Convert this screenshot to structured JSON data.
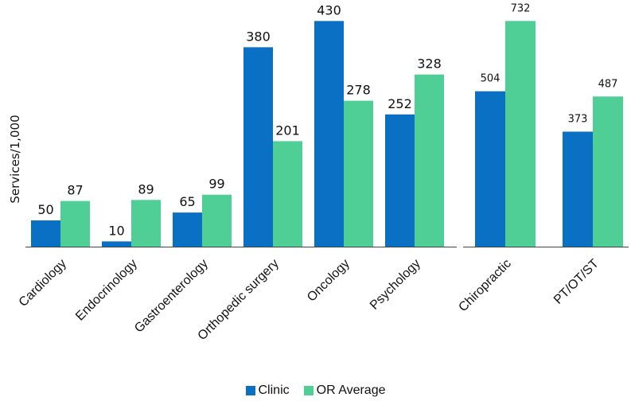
{
  "colors": {
    "clinic": "#0a70c4",
    "or_average": "#4fcf96",
    "axis": "#444444"
  },
  "chart_data": [
    {
      "type": "bar",
      "ylabel": "Services/1,000",
      "ylim": [
        0,
        470
      ],
      "categories": [
        "Cardiology",
        "Endocrinology",
        "Gastroenterology",
        "Orthopedic surgery",
        "Oncology",
        "Psychology"
      ],
      "series": [
        {
          "name": "Clinic",
          "values": [
            50,
            10,
            65,
            380,
            430,
            252
          ]
        },
        {
          "name": "OR Average",
          "values": [
            87,
            89,
            99,
            201,
            278,
            328
          ]
        }
      ]
    },
    {
      "type": "bar",
      "ylim": [
        0,
        800
      ],
      "categories": [
        "Chiropractic",
        "PT/OT/ST"
      ],
      "series": [
        {
          "name": "Clinic",
          "values": [
            504,
            373
          ]
        },
        {
          "name": "OR Average",
          "values": [
            732,
            487
          ]
        }
      ]
    }
  ],
  "legend": [
    {
      "label": "Clinic",
      "color": "#0a70c4"
    },
    {
      "label": "OR Average",
      "color": "#4fcf96"
    }
  ]
}
